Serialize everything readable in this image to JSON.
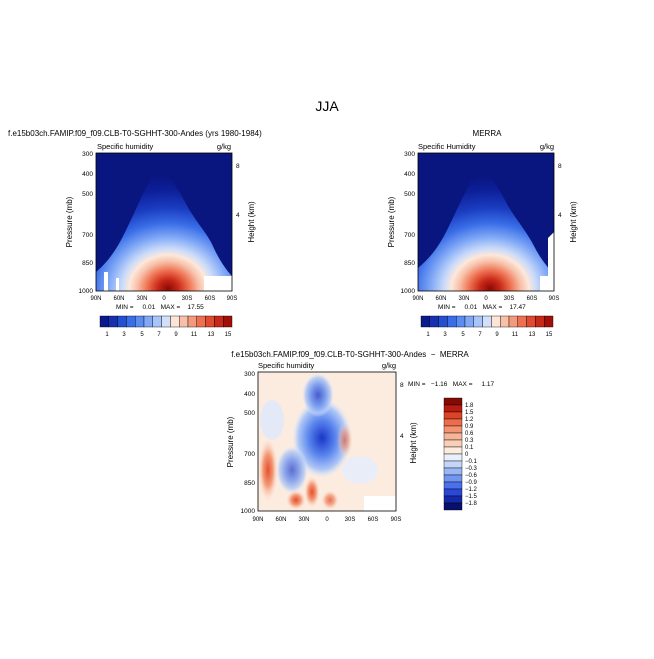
{
  "page": {
    "title": "JJA"
  },
  "colors": {
    "abs_scale": [
      "#0a1a8c",
      "#1630b0",
      "#2250d0",
      "#3a6ee8",
      "#5a8cf2",
      "#80a8f6",
      "#a8c4f8",
      "#d0e0fa",
      "#fce4d8",
      "#f8c0a8",
      "#f49a7c",
      "#ee7050",
      "#e04a30",
      "#c82818",
      "#a01008"
    ],
    "diff_scale": [
      "#08106e",
      "#1528a8",
      "#2a48d8",
      "#4a70ec",
      "#7296f0",
      "#9ab6f4",
      "#c4d6f8",
      "#e8f0fc",
      "#fcece0",
      "#f8d0b8",
      "#f6b498",
      "#f29474",
      "#ec6c4c",
      "#dc4428",
      "#b81c10",
      "#840a04"
    ]
  },
  "chart_data": [
    {
      "type": "heatmap",
      "title": "f.e15b03ch.FAMIP.f09_f09.CLB-T0-SGHHT-300-Andes (yrs 1980-1984)",
      "subtitle_left": "Specific humidity",
      "subtitle_right": "g/kg",
      "ylabel": "Pressure (mb)",
      "ylabel_right": "Height (km)",
      "x_ticks": [
        "90N",
        "60N",
        "30N",
        "0",
        "30S",
        "60S",
        "90S"
      ],
      "y_ticks": [
        "300",
        "400",
        "500",
        "700",
        "850",
        "1000"
      ],
      "y_ticks_right": [
        "8",
        "4"
      ],
      "ylim": [
        1000,
        300
      ],
      "stats": "MIN =     0.01   MAX =    17.55",
      "colorbar_labels": [
        "1",
        "3",
        "5",
        "7",
        "9",
        "11",
        "13",
        "15"
      ]
    },
    {
      "type": "heatmap",
      "title": "MERRA",
      "subtitle_left": "Specific Humidity",
      "subtitle_right": "g/kg",
      "ylabel": "Pressure (mb)",
      "ylabel_right": "Height (km)",
      "x_ticks": [
        "90N",
        "60N",
        "30N",
        "0",
        "30S",
        "60S",
        "90S"
      ],
      "y_ticks": [
        "300",
        "400",
        "500",
        "700",
        "850",
        "1000"
      ],
      "y_ticks_right": [
        "8",
        "4"
      ],
      "ylim": [
        1000,
        300
      ],
      "stats": "MIN =     0.01   MAX =    17.47",
      "colorbar_labels": [
        "1",
        "3",
        "5",
        "7",
        "9",
        "11",
        "13",
        "15"
      ]
    },
    {
      "type": "heatmap",
      "title": "f.e15b03ch.FAMIP.f09_f09.CLB-T0-SGHHT-300-Andes  −  MERRA",
      "subtitle_left": "Specific humidity",
      "subtitle_right": "g/kg",
      "ylabel": "Pressure (mb)",
      "ylabel_right": "Height (km)",
      "x_ticks": [
        "90N",
        "60N",
        "30N",
        "0",
        "30S",
        "60S",
        "90S"
      ],
      "y_ticks": [
        "300",
        "400",
        "500",
        "700",
        "850",
        "1000"
      ],
      "y_ticks_right": [
        "8",
        "4"
      ],
      "ylim": [
        1000,
        300
      ],
      "stats": "MIN =   −1.16   MAX =     1.17",
      "colorbar_labels": [
        "1.8",
        "1.5",
        "1.2",
        "0.9",
        "0.6",
        "0.3",
        "0.1",
        "0",
        "−0.1",
        "−0.3",
        "−0.6",
        "−0.9",
        "−1.2",
        "−1.5",
        "−1.8"
      ]
    }
  ]
}
